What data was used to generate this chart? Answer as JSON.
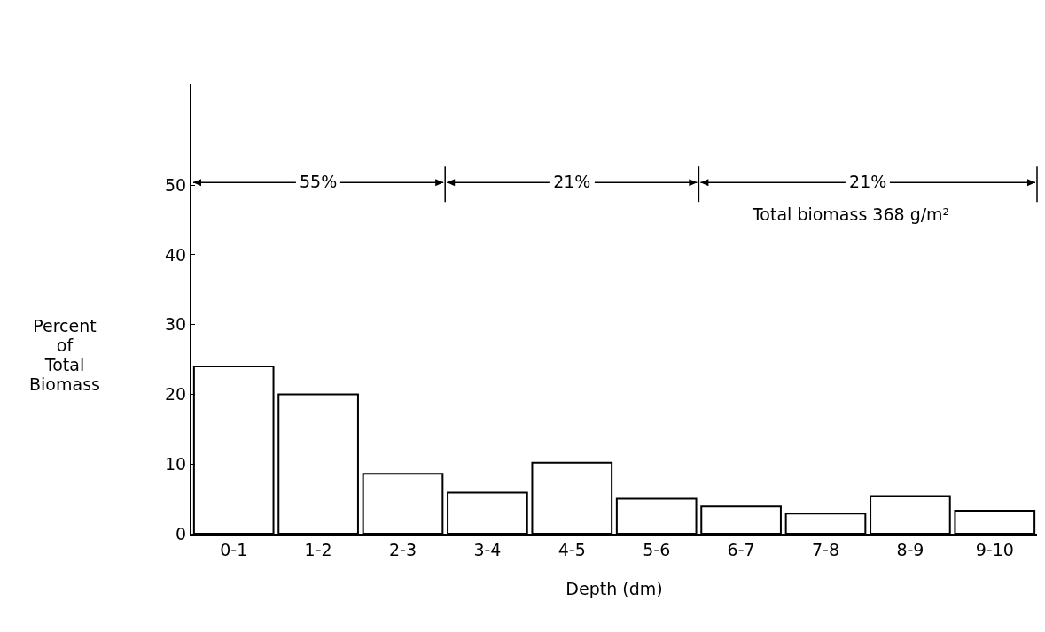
{
  "chart_data": {
    "type": "bar",
    "xlabel": "Depth (dm)",
    "ylabel": "Percent of Total Biomass",
    "categories": [
      "0-1",
      "1-2",
      "2-3",
      "3-4",
      "4-5",
      "5-6",
      "6-7",
      "7-8",
      "8-9",
      "9-10"
    ],
    "values": [
      24,
      20,
      8.6,
      5.9,
      10.2,
      5,
      3.9,
      2.9,
      5.4,
      3.3
    ],
    "color": "#ffffff",
    "ylim": [
      0,
      64.5
    ],
    "yticks": [
      0,
      10,
      20,
      30,
      40,
      50
    ],
    "grid": false,
    "annotations": [
      "55%",
      "21%",
      "21%",
      "Total biomass 368 g/m²"
    ]
  }
}
